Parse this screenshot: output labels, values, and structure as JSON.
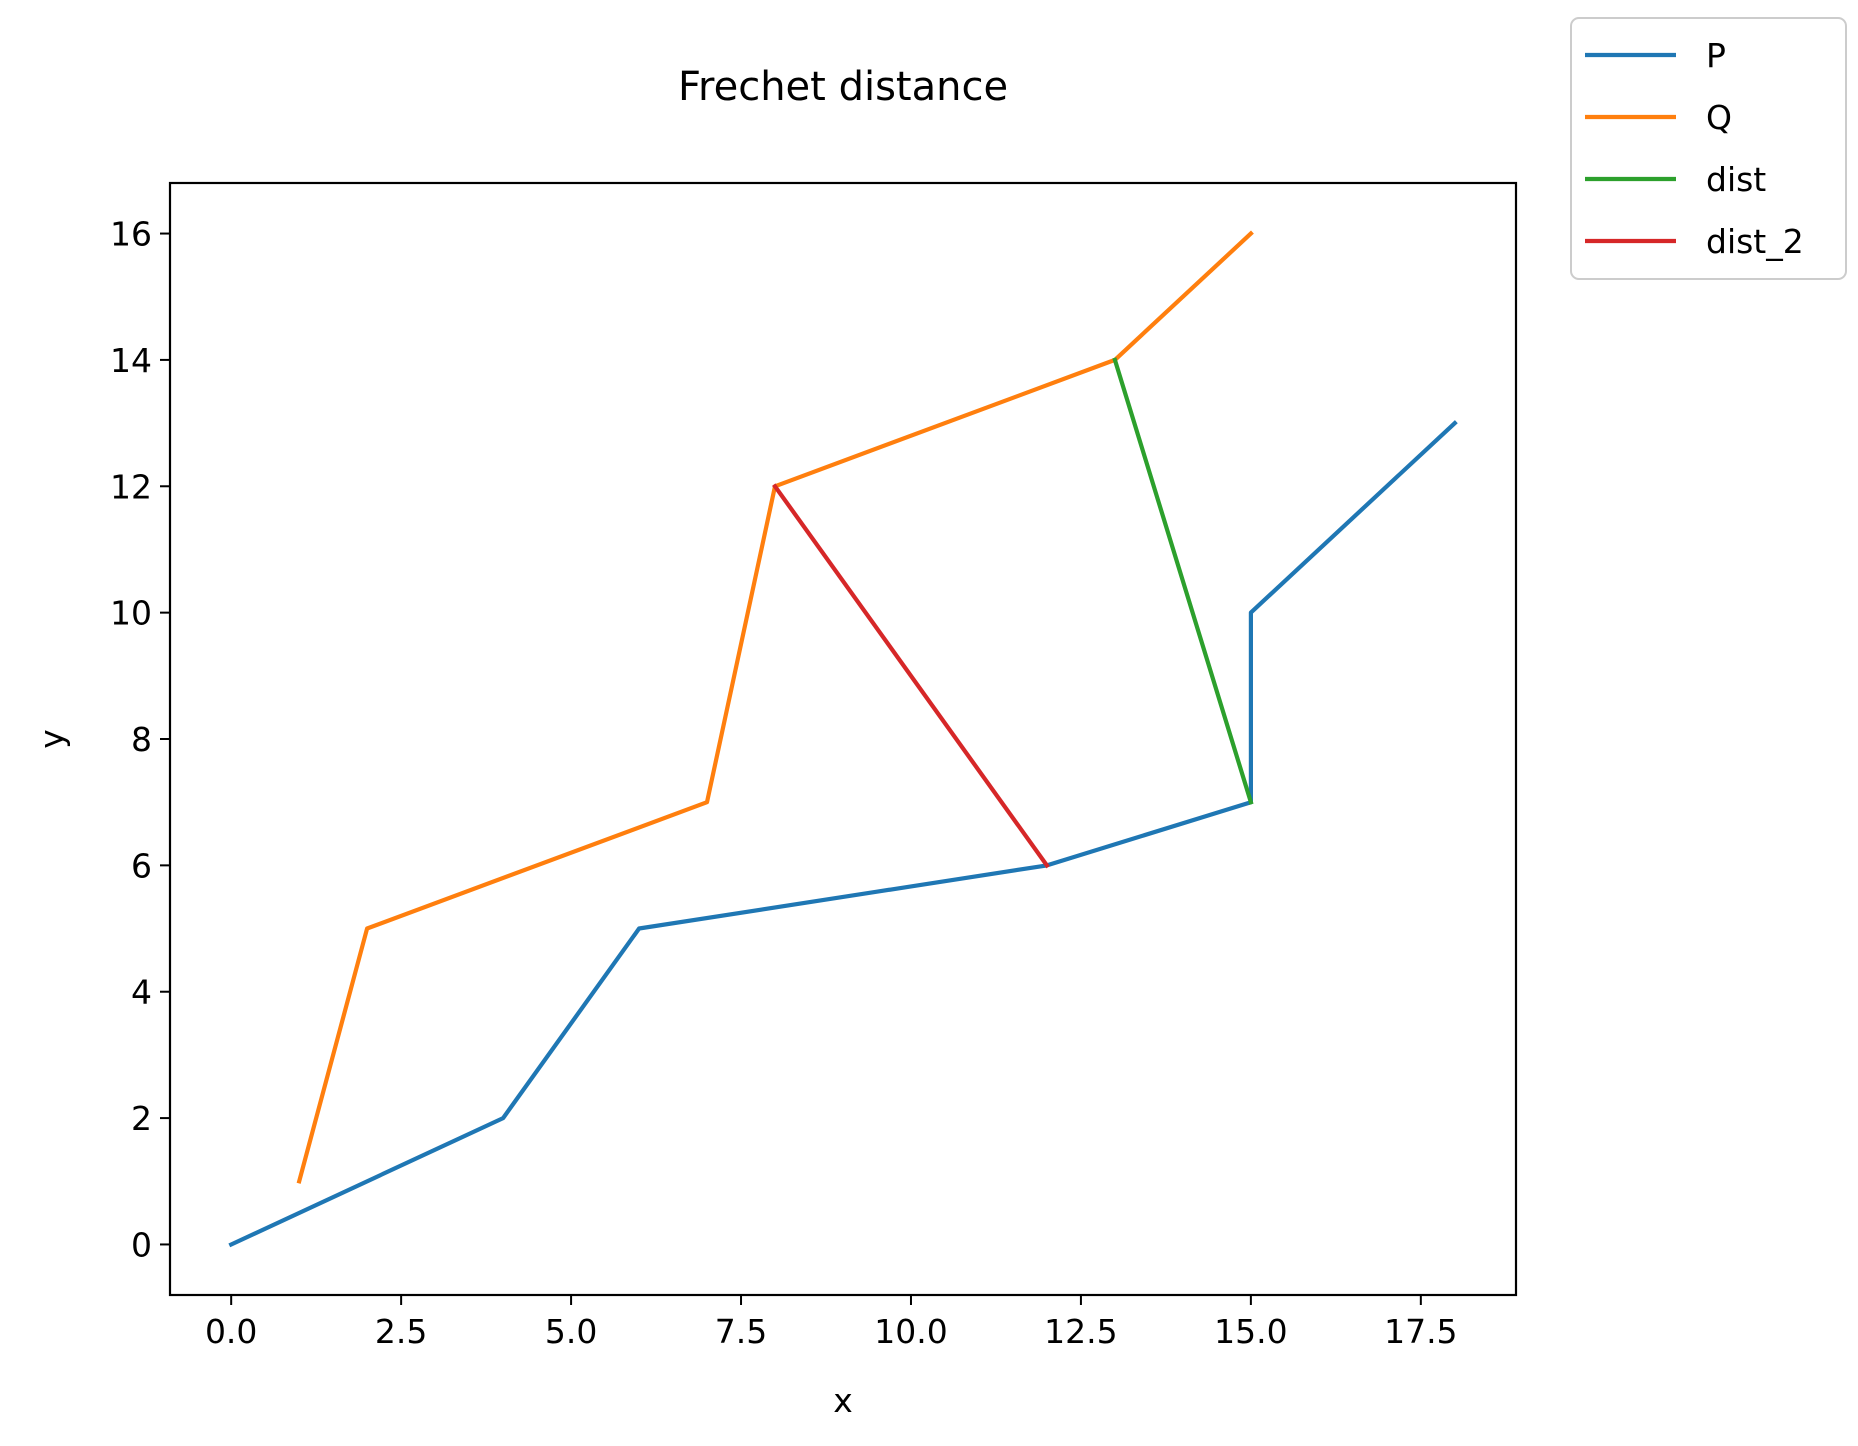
{
  "chart_data": {
    "type": "line",
    "title": "Frechet distance",
    "xlabel": "x",
    "ylabel": "y",
    "xlim": [
      -0.9,
      18.9
    ],
    "ylim": [
      -0.8,
      16.8
    ],
    "xticks": [
      0.0,
      2.5,
      5.0,
      7.5,
      10.0,
      12.5,
      15.0,
      17.5
    ],
    "xtick_labels": [
      "0.0",
      "2.5",
      "5.0",
      "7.5",
      "10.0",
      "12.5",
      "15.0",
      "17.5"
    ],
    "yticks": [
      0,
      2,
      4,
      6,
      8,
      10,
      12,
      14,
      16
    ],
    "ytick_labels": [
      "0",
      "2",
      "4",
      "6",
      "8",
      "10",
      "12",
      "14",
      "16"
    ],
    "grid": false,
    "legend_position": "outside-top-right",
    "series": [
      {
        "name": "P",
        "color": "#1f77b4",
        "x": [
          0,
          4,
          6,
          12,
          15,
          15,
          18
        ],
        "y": [
          0,
          2,
          5,
          6,
          7,
          10,
          13
        ]
      },
      {
        "name": "Q",
        "color": "#ff7f0e",
        "x": [
          1,
          2,
          7,
          8,
          13,
          15
        ],
        "y": [
          1,
          5,
          7,
          12,
          14,
          16
        ]
      },
      {
        "name": "dist",
        "color": "#2ca02c",
        "x": [
          13,
          15
        ],
        "y": [
          14,
          7
        ]
      },
      {
        "name": "dist_2",
        "color": "#d62728",
        "x": [
          8,
          12
        ],
        "y": [
          12,
          6
        ]
      }
    ]
  }
}
